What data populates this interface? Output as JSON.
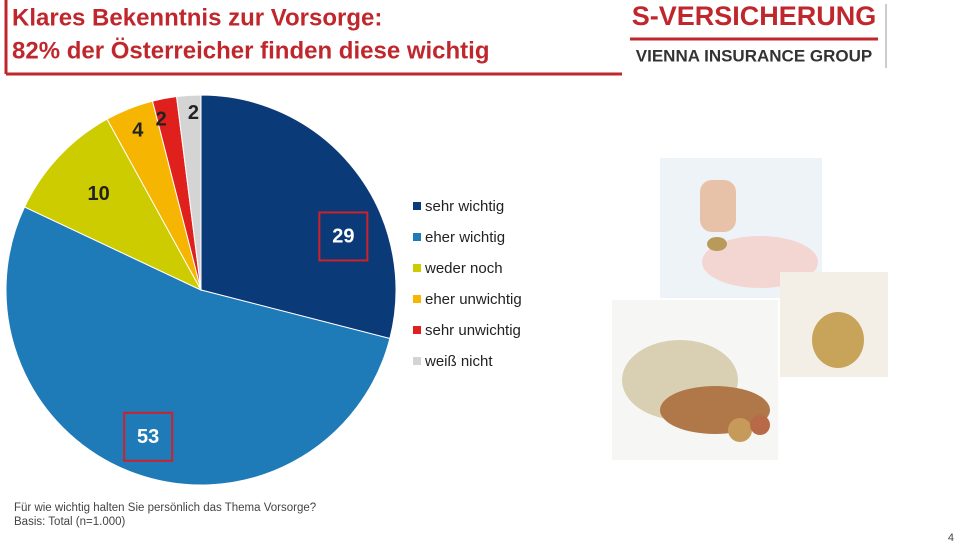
{
  "chart_data": {
    "type": "pie",
    "title": "Klares Bekenntnis zur Vorsorge:",
    "subtitle": "82% der Österreicher finden diese wichtig",
    "categories": [
      "sehr wichtig",
      "eher wichtig",
      "weder noch",
      "eher unwichtig",
      "sehr unwichtig",
      "weiß nicht"
    ],
    "values": [
      29,
      53,
      10,
      4,
      2,
      2
    ],
    "colors": [
      "#0b3a78",
      "#1f7ab8",
      "#cccc00",
      "#f6b500",
      "#e0201c",
      "#d4d4d4"
    ],
    "highlighted": [
      0,
      1
    ],
    "notes": [
      "Für wie wichtig halten Sie persönlich das Thema Vorsorge?",
      "Basis: Total (n=1.000)"
    ]
  },
  "logo": {
    "name": "S-VERSICHERUNG",
    "tagline": "VIENNA INSURANCE GROUP"
  },
  "page_number": 4
}
